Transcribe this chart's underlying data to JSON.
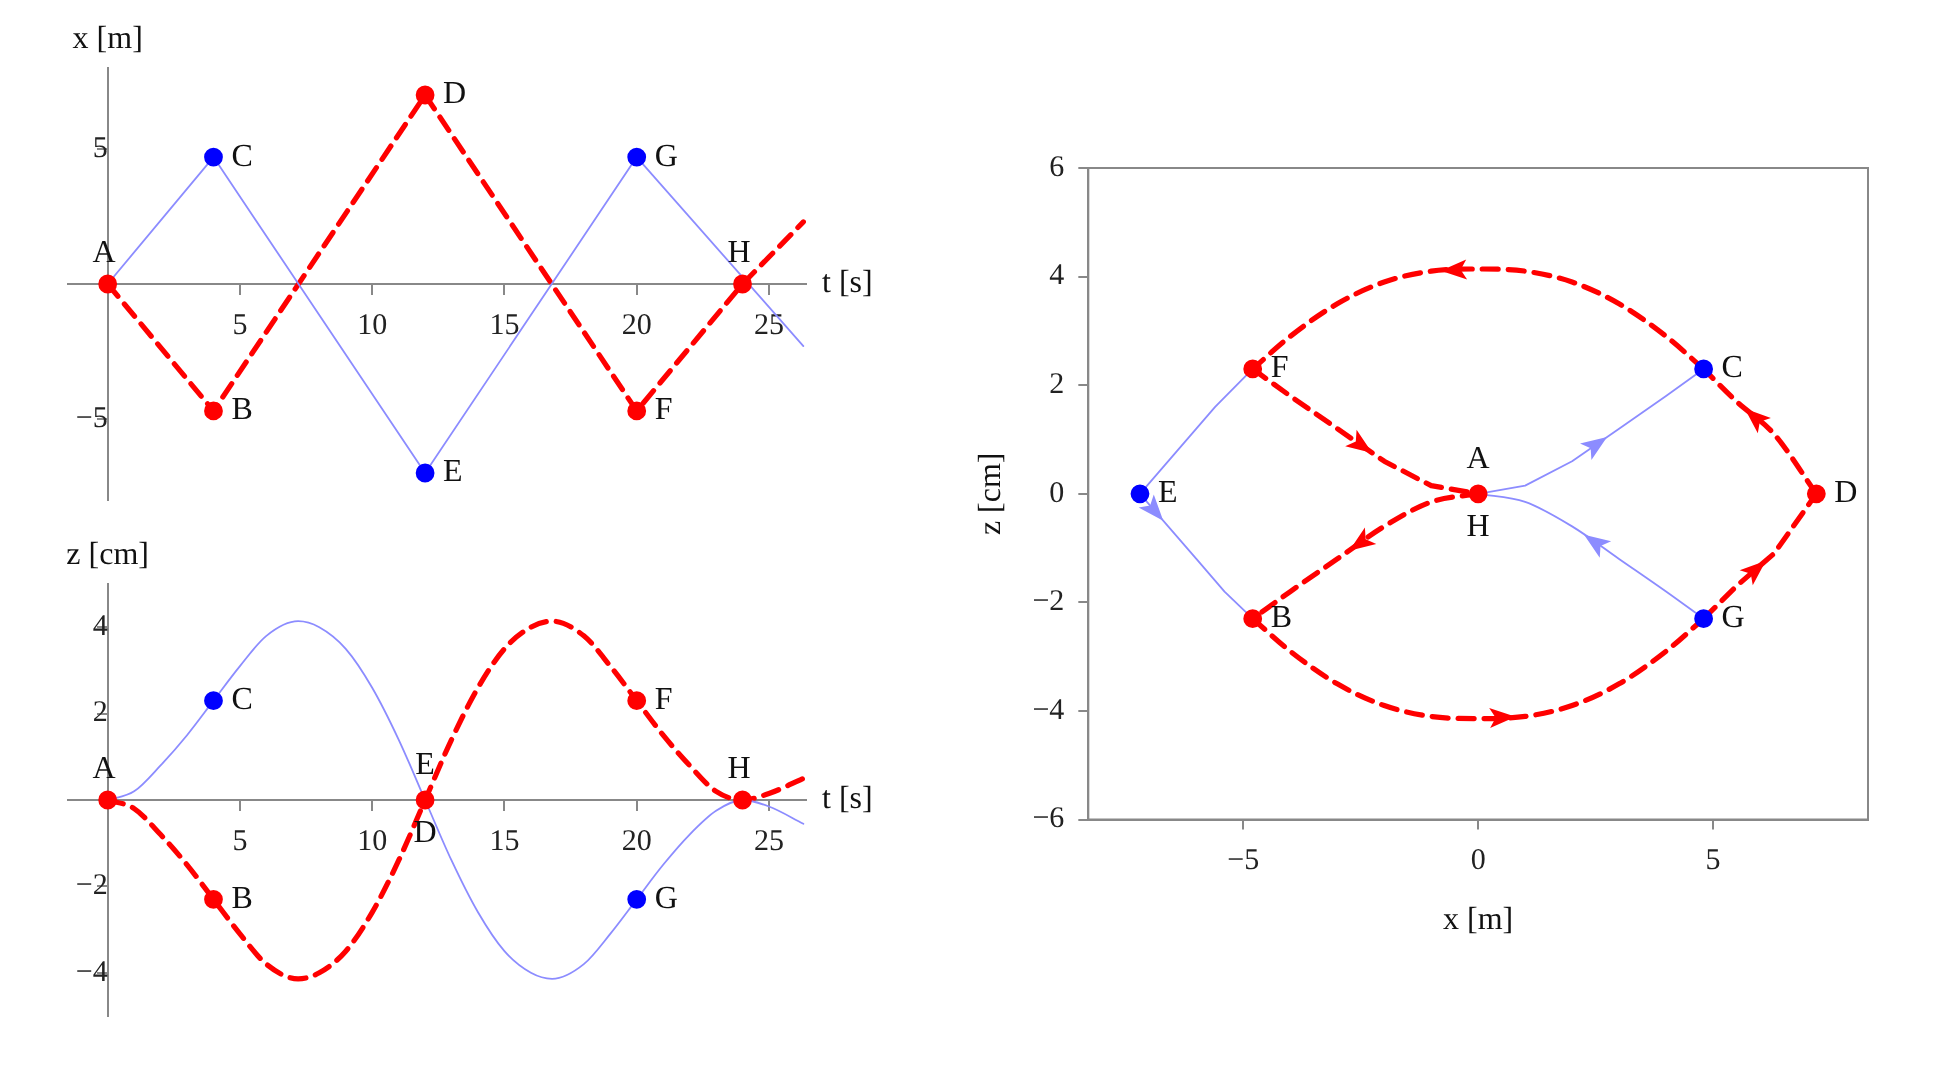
{
  "chart_data": [
    {
      "type": "line",
      "xlabel": "t [s]",
      "ylabel": "x [m]",
      "xlim": [
        -1.5,
        26.4
      ],
      "ylim": [
        -8,
        8
      ],
      "xticks": [
        5,
        10,
        15,
        20,
        25
      ],
      "yticks": [
        {
          "value": -5,
          "label": "−5"
        },
        5
      ],
      "grid": false,
      "legend": false,
      "series": [
        {
          "type": "line",
          "color": "#8c8cff",
          "line_style": "solid",
          "marker": "none",
          "x": [
            0,
            4,
            12,
            20,
            26.3
          ],
          "values": [
            0,
            4.7,
            -7,
            4.7,
            -2.3
          ]
        },
        {
          "type": "line",
          "color": "#ff0000",
          "line_style": "dashed",
          "marker": "none",
          "x": [
            0,
            4,
            12,
            20,
            24,
            26.3
          ],
          "values": [
            0,
            -4.7,
            7,
            -4.7,
            0,
            2.3
          ]
        },
        {
          "type": "scatter",
          "color": "#0000ff",
          "marker": "circle",
          "x": [
            4,
            12,
            20
          ],
          "values": [
            4.7,
            -7,
            4.7
          ]
        },
        {
          "type": "scatter",
          "color": "#ff0000",
          "marker": "circle",
          "x": [
            0,
            4,
            12,
            20,
            24
          ],
          "values": [
            0,
            -4.7,
            7,
            -4.7,
            0
          ]
        }
      ],
      "annotations": [
        {
          "text": "A",
          "x": 0,
          "y": 0
        },
        {
          "text": "B",
          "x": 4,
          "y": -4.7
        },
        {
          "text": "C",
          "x": 4,
          "y": 4.7
        },
        {
          "text": "D",
          "x": 12,
          "y": 7
        },
        {
          "text": "E",
          "x": 12,
          "y": -7
        },
        {
          "text": "F",
          "x": 20,
          "y": -4.7
        },
        {
          "text": "G",
          "x": 20,
          "y": 4.7
        },
        {
          "text": "H",
          "x": 24,
          "y": 0
        }
      ]
    },
    {
      "type": "line",
      "xlabel": "t [s]",
      "ylabel": "z [cm]",
      "xlim": [
        -1.5,
        26.4
      ],
      "ylim": [
        -5,
        5
      ],
      "xticks": [
        5,
        10,
        15,
        20,
        25
      ],
      "yticks": [
        {
          "value": -4,
          "label": "−4"
        },
        {
          "value": -2,
          "label": "−2"
        },
        2,
        4
      ],
      "grid": false,
      "legend": false,
      "series": [
        {
          "type": "line",
          "color": "#8c8cff",
          "line_style": "solid",
          "marker": "none",
          "x": [
            0,
            1,
            2,
            3,
            4,
            5,
            6,
            7.2,
            8,
            9,
            10,
            11,
            12,
            13,
            14,
            15,
            16,
            16.8,
            18,
            19,
            20,
            21,
            22,
            23,
            24,
            25,
            26.3
          ],
          "values": [
            0,
            0.2,
            0.8,
            1.5,
            2.3,
            3.1,
            3.8,
            4.14,
            4,
            3.5,
            2.6,
            1.4,
            0,
            -1.4,
            -2.6,
            -3.5,
            -4,
            -4.14,
            -3.8,
            -3.1,
            -2.3,
            -1.5,
            -0.8,
            -0.25,
            0,
            -0.15,
            -0.55
          ]
        },
        {
          "type": "line",
          "color": "#ff0000",
          "line_style": "dashed",
          "marker": "none",
          "x": [
            0,
            1,
            2,
            3,
            4,
            5,
            6,
            7.2,
            8,
            9,
            10,
            11,
            12,
            13,
            14,
            15,
            16,
            16.8,
            18,
            19,
            20,
            21,
            22,
            23,
            24,
            25,
            26.3
          ],
          "values": [
            0,
            -0.2,
            -0.8,
            -1.5,
            -2.3,
            -3.1,
            -3.8,
            -4.14,
            -4,
            -3.5,
            -2.6,
            -1.4,
            0,
            1.4,
            2.6,
            3.5,
            4,
            4.14,
            3.8,
            3.1,
            2.3,
            1.5,
            0.8,
            0.2,
            0,
            0.15,
            0.5
          ]
        },
        {
          "type": "scatter",
          "color": "#0000ff",
          "marker": "circle",
          "x": [
            4,
            20
          ],
          "values": [
            2.3,
            -2.3
          ]
        },
        {
          "type": "scatter",
          "color": "#ff0000",
          "marker": "circle",
          "x": [
            0,
            4,
            12,
            20,
            24
          ],
          "values": [
            0,
            -2.3,
            0,
            2.3,
            0
          ]
        }
      ],
      "annotations": [
        {
          "text": "A",
          "x": 0,
          "y": 0
        },
        {
          "text": "B",
          "x": 4,
          "y": -2.3
        },
        {
          "text": "C",
          "x": 4,
          "y": 2.3
        },
        {
          "text": "E",
          "x": 12,
          "y": 0
        },
        {
          "text": "D",
          "x": 12,
          "y": 0
        },
        {
          "text": "F",
          "x": 20,
          "y": 2.3
        },
        {
          "text": "G",
          "x": 20,
          "y": -2.3
        },
        {
          "text": "H",
          "x": 24,
          "y": 0
        }
      ]
    },
    {
      "type": "line",
      "xlabel": "x [m]",
      "ylabel": "z [cm]",
      "xlim": [
        -8.3,
        8.3
      ],
      "ylim": [
        -6,
        6
      ],
      "xticks": [
        {
          "value": -5,
          "label": "−5"
        },
        0,
        5
      ],
      "yticks": [
        {
          "value": -6,
          "label": "−6"
        },
        {
          "value": -4,
          "label": "−4"
        },
        {
          "value": -2,
          "label": "−2"
        },
        0,
        2,
        4,
        6
      ],
      "grid": false,
      "legend": false,
      "series": [
        {
          "type": "line",
          "color": "#ff0000",
          "line_style": "dashed",
          "marker": "none",
          "x": [
            -4.8,
            -4,
            -3,
            -2,
            -1,
            0
          ],
          "values": [
            2.3,
            1.8,
            1.2,
            0.6,
            0.15,
            0
          ]
        },
        {
          "type": "line",
          "color": "#ff0000",
          "line_style": "dashed",
          "marker": "none",
          "x": [
            0,
            -1,
            -2,
            -3,
            -4,
            -4.8
          ],
          "values": [
            0,
            -0.15,
            -0.6,
            -1.2,
            -1.8,
            -2.3
          ]
        },
        {
          "type": "line",
          "color": "#ff0000",
          "line_style": "dashed",
          "marker": "none",
          "x": [
            -4.8,
            -4,
            -3,
            -2,
            -1,
            0,
            1,
            2,
            3,
            4,
            4.8
          ],
          "values": [
            -2.3,
            -2.9,
            -3.5,
            -3.9,
            -4.1,
            -4.14,
            -4.1,
            -3.9,
            -3.5,
            -2.9,
            -2.3
          ]
        },
        {
          "type": "line",
          "color": "#ff0000",
          "line_style": "dashed",
          "marker": "none",
          "x": [
            4.8,
            5.5,
            6.3,
            7.2
          ],
          "values": [
            -2.3,
            -1.7,
            -1.1,
            0
          ]
        },
        {
          "type": "line",
          "color": "#ff0000",
          "line_style": "dashed",
          "marker": "none",
          "x": [
            7.2,
            6.3,
            5.5,
            4.8
          ],
          "values": [
            0,
            1.1,
            1.7,
            2.3
          ]
        },
        {
          "type": "line",
          "color": "#ff0000",
          "line_style": "dashed",
          "marker": "none",
          "x": [
            4.8,
            4,
            3,
            2,
            1,
            0,
            -1,
            -2,
            -3,
            -4,
            -4.8
          ],
          "values": [
            2.3,
            2.9,
            3.5,
            3.9,
            4.1,
            4.14,
            4.1,
            3.9,
            3.5,
            2.9,
            2.3
          ]
        },
        {
          "type": "line",
          "color": "#8c8cff",
          "line_style": "solid",
          "marker": "none",
          "x": [
            0,
            1,
            2,
            3,
            4,
            4.8
          ],
          "values": [
            0,
            0.15,
            0.6,
            1.2,
            1.8,
            2.3
          ]
        },
        {
          "type": "line",
          "color": "#8c8cff",
          "line_style": "solid",
          "marker": "none",
          "x": [
            4.8,
            4,
            3,
            2,
            1,
            0
          ],
          "values": [
            -2.3,
            -1.8,
            -1.2,
            -0.6,
            -0.15,
            0
          ]
        },
        {
          "type": "line",
          "color": "#8c8cff",
          "line_style": "solid",
          "marker": "none",
          "x": [
            -4.8,
            -5.6,
            -6.4,
            -7.2,
            -6.6,
            -6,
            -5.4,
            -4.8
          ],
          "values": [
            2.3,
            1.6,
            0.8,
            0,
            -0.6,
            -1.2,
            -1.8,
            -2.3
          ]
        },
        {
          "type": "scatter",
          "color": "#0000ff",
          "marker": "circle",
          "x": [
            4.8,
            -7.2,
            4.8
          ],
          "values": [
            2.3,
            0,
            -2.3
          ]
        },
        {
          "type": "scatter",
          "color": "#ff0000",
          "marker": "circle",
          "x": [
            0,
            -4.8,
            7.2,
            -4.8
          ],
          "values": [
            0,
            -2.3,
            0,
            2.3
          ]
        }
      ],
      "annotations": [
        {
          "text": "A",
          "x": 0,
          "y": 0
        },
        {
          "text": "B",
          "x": -4.8,
          "y": -2.3
        },
        {
          "text": "C",
          "x": 4.8,
          "y": 2.3
        },
        {
          "text": "D",
          "x": 7.2,
          "y": 0
        },
        {
          "text": "E",
          "x": -7.2,
          "y": 0
        },
        {
          "text": "F",
          "x": -4.8,
          "y": 2.3
        },
        {
          "text": "G",
          "x": 4.8,
          "y": -2.3
        },
        {
          "text": "H",
          "x": 0,
          "y": 0
        }
      ]
    }
  ]
}
